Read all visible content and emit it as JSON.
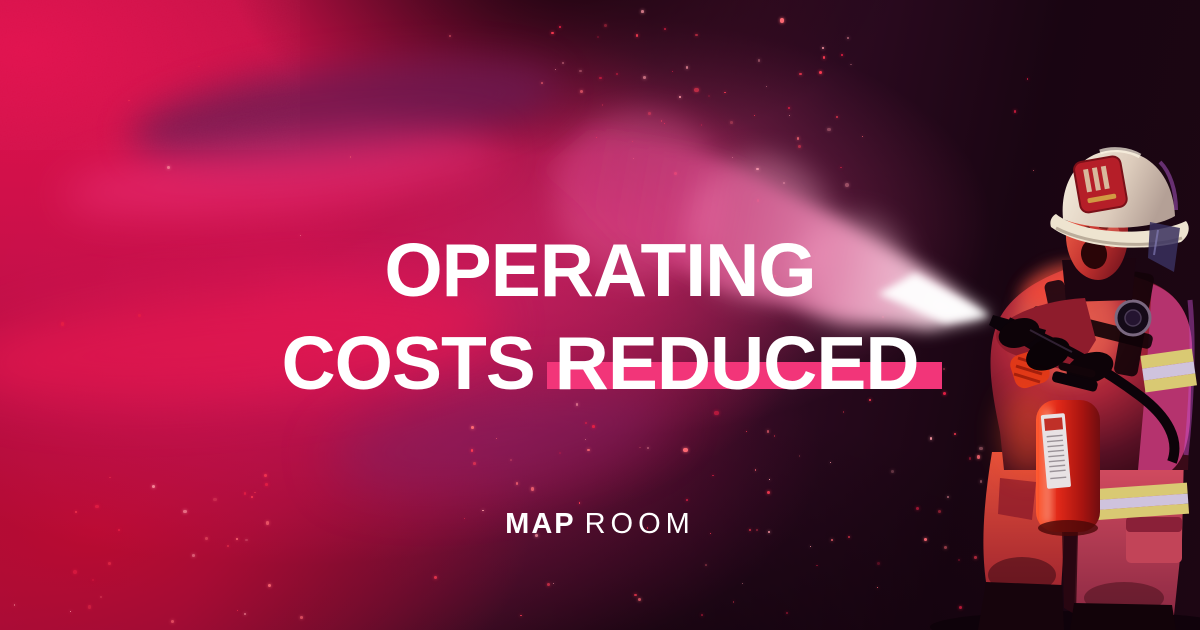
{
  "banner": {
    "alt": "Firefighter in a white helmet shouting while spraying a fire extinguisher, filling the scene with crimson-pink smoke",
    "title": {
      "line1": "OPERATING",
      "line2_prefix": "COSTS",
      "line2_highlight": "REDUCED"
    },
    "brand": {
      "bold": "MAP",
      "light": "ROOM"
    },
    "palette": {
      "highlight_pink": "#f23579",
      "crimson": "#d01047",
      "magenta_smoke": "#e82068",
      "deep_purple": "#5a1334",
      "near_black": "#190512",
      "text_white": "#ffffff",
      "extinguisher_red": "#d42316",
      "helmet_ivory": "#f0e8d6"
    }
  }
}
